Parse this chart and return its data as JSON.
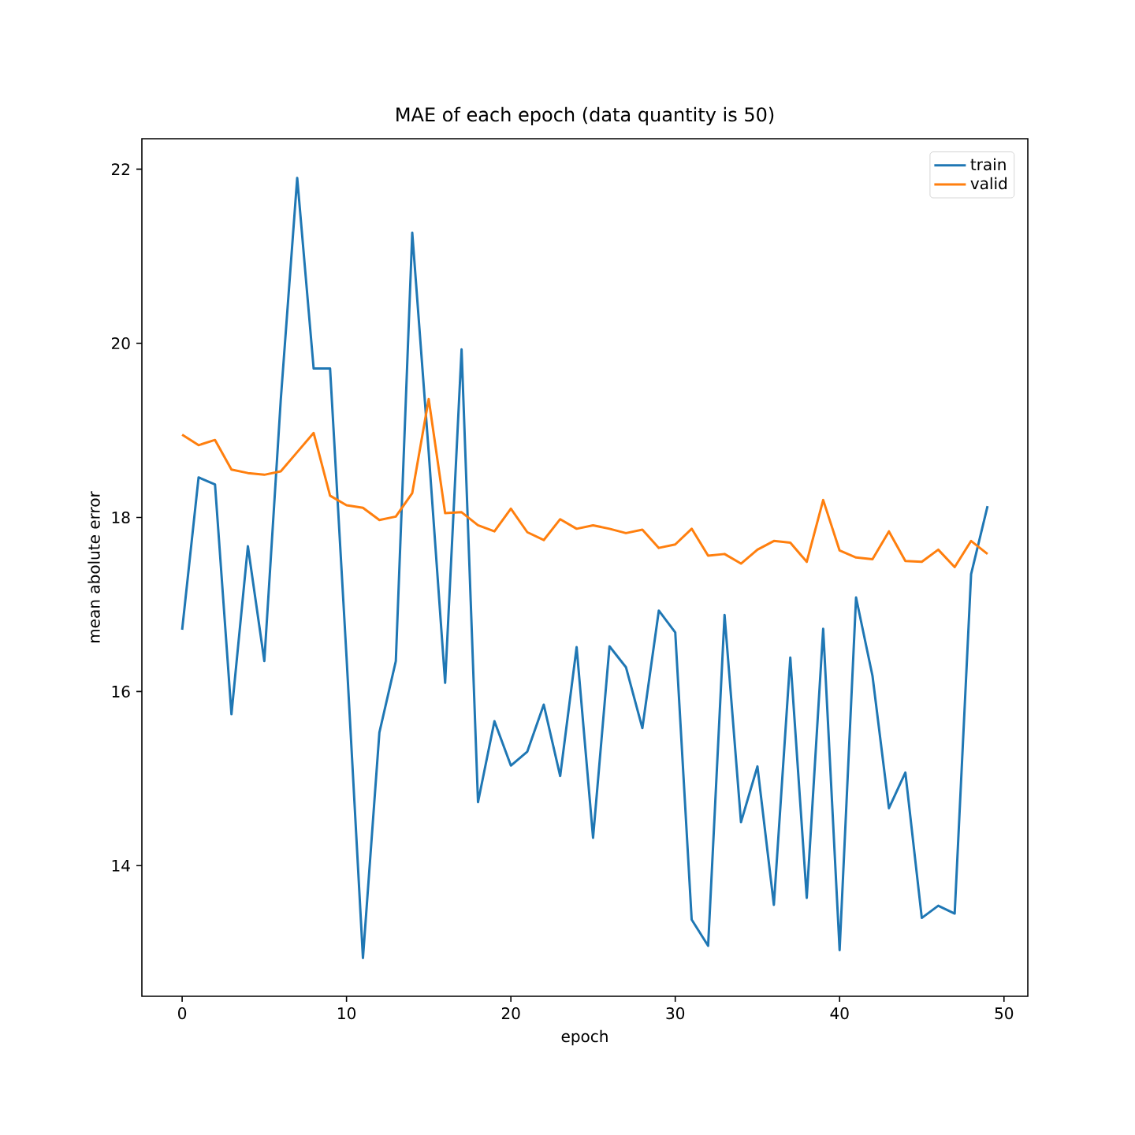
{
  "chart_data": {
    "type": "line",
    "title": "MAE of each epoch (data quantity is 50)",
    "xlabel": "epoch",
    "ylabel": "mean abolute error",
    "x": [
      0,
      1,
      2,
      3,
      4,
      5,
      6,
      7,
      8,
      9,
      10,
      11,
      12,
      13,
      14,
      15,
      16,
      17,
      18,
      19,
      20,
      21,
      22,
      23,
      24,
      25,
      26,
      27,
      28,
      29,
      30,
      31,
      32,
      33,
      34,
      35,
      36,
      37,
      38,
      39,
      40,
      41,
      42,
      43,
      44,
      45,
      46,
      47,
      48,
      49
    ],
    "series": [
      {
        "name": "train",
        "color": "#1f77b4",
        "values": [
          16.71,
          18.46,
          18.38,
          15.74,
          17.67,
          16.35,
          19.35,
          21.9,
          19.71,
          19.71,
          16.4,
          12.94,
          15.53,
          16.35,
          21.27,
          18.75,
          16.1,
          19.93,
          14.73,
          15.66,
          15.15,
          15.31,
          15.85,
          15.03,
          16.51,
          14.32,
          16.52,
          16.28,
          15.58,
          16.93,
          16.68,
          13.38,
          13.08,
          16.88,
          14.5,
          15.14,
          13.55,
          16.39,
          13.63,
          16.72,
          13.03,
          17.08,
          16.18,
          14.66,
          15.07,
          13.4,
          13.54,
          13.45,
          17.35,
          18.13
        ]
      },
      {
        "name": "valid",
        "color": "#ff7f0e",
        "values": [
          18.95,
          18.83,
          18.89,
          18.55,
          18.51,
          18.49,
          18.53,
          18.75,
          18.97,
          18.25,
          18.14,
          18.11,
          17.97,
          18.01,
          18.28,
          19.36,
          18.05,
          18.06,
          17.91,
          17.84,
          18.1,
          17.83,
          17.74,
          17.98,
          17.87,
          17.91,
          17.87,
          17.82,
          17.86,
          17.65,
          17.69,
          17.87,
          17.56,
          17.58,
          17.47,
          17.63,
          17.73,
          17.71,
          17.49,
          18.2,
          17.62,
          17.54,
          17.52,
          17.84,
          17.5,
          17.49,
          17.63,
          17.43,
          17.73,
          17.58
        ]
      }
    ],
    "xlim": [
      -2.45,
      51.45
    ],
    "ylim": [
      12.5,
      22.35
    ],
    "xticks": [
      0,
      10,
      20,
      30,
      40,
      50
    ],
    "yticks": [
      14,
      16,
      18,
      20,
      22
    ],
    "legend": "top right"
  }
}
